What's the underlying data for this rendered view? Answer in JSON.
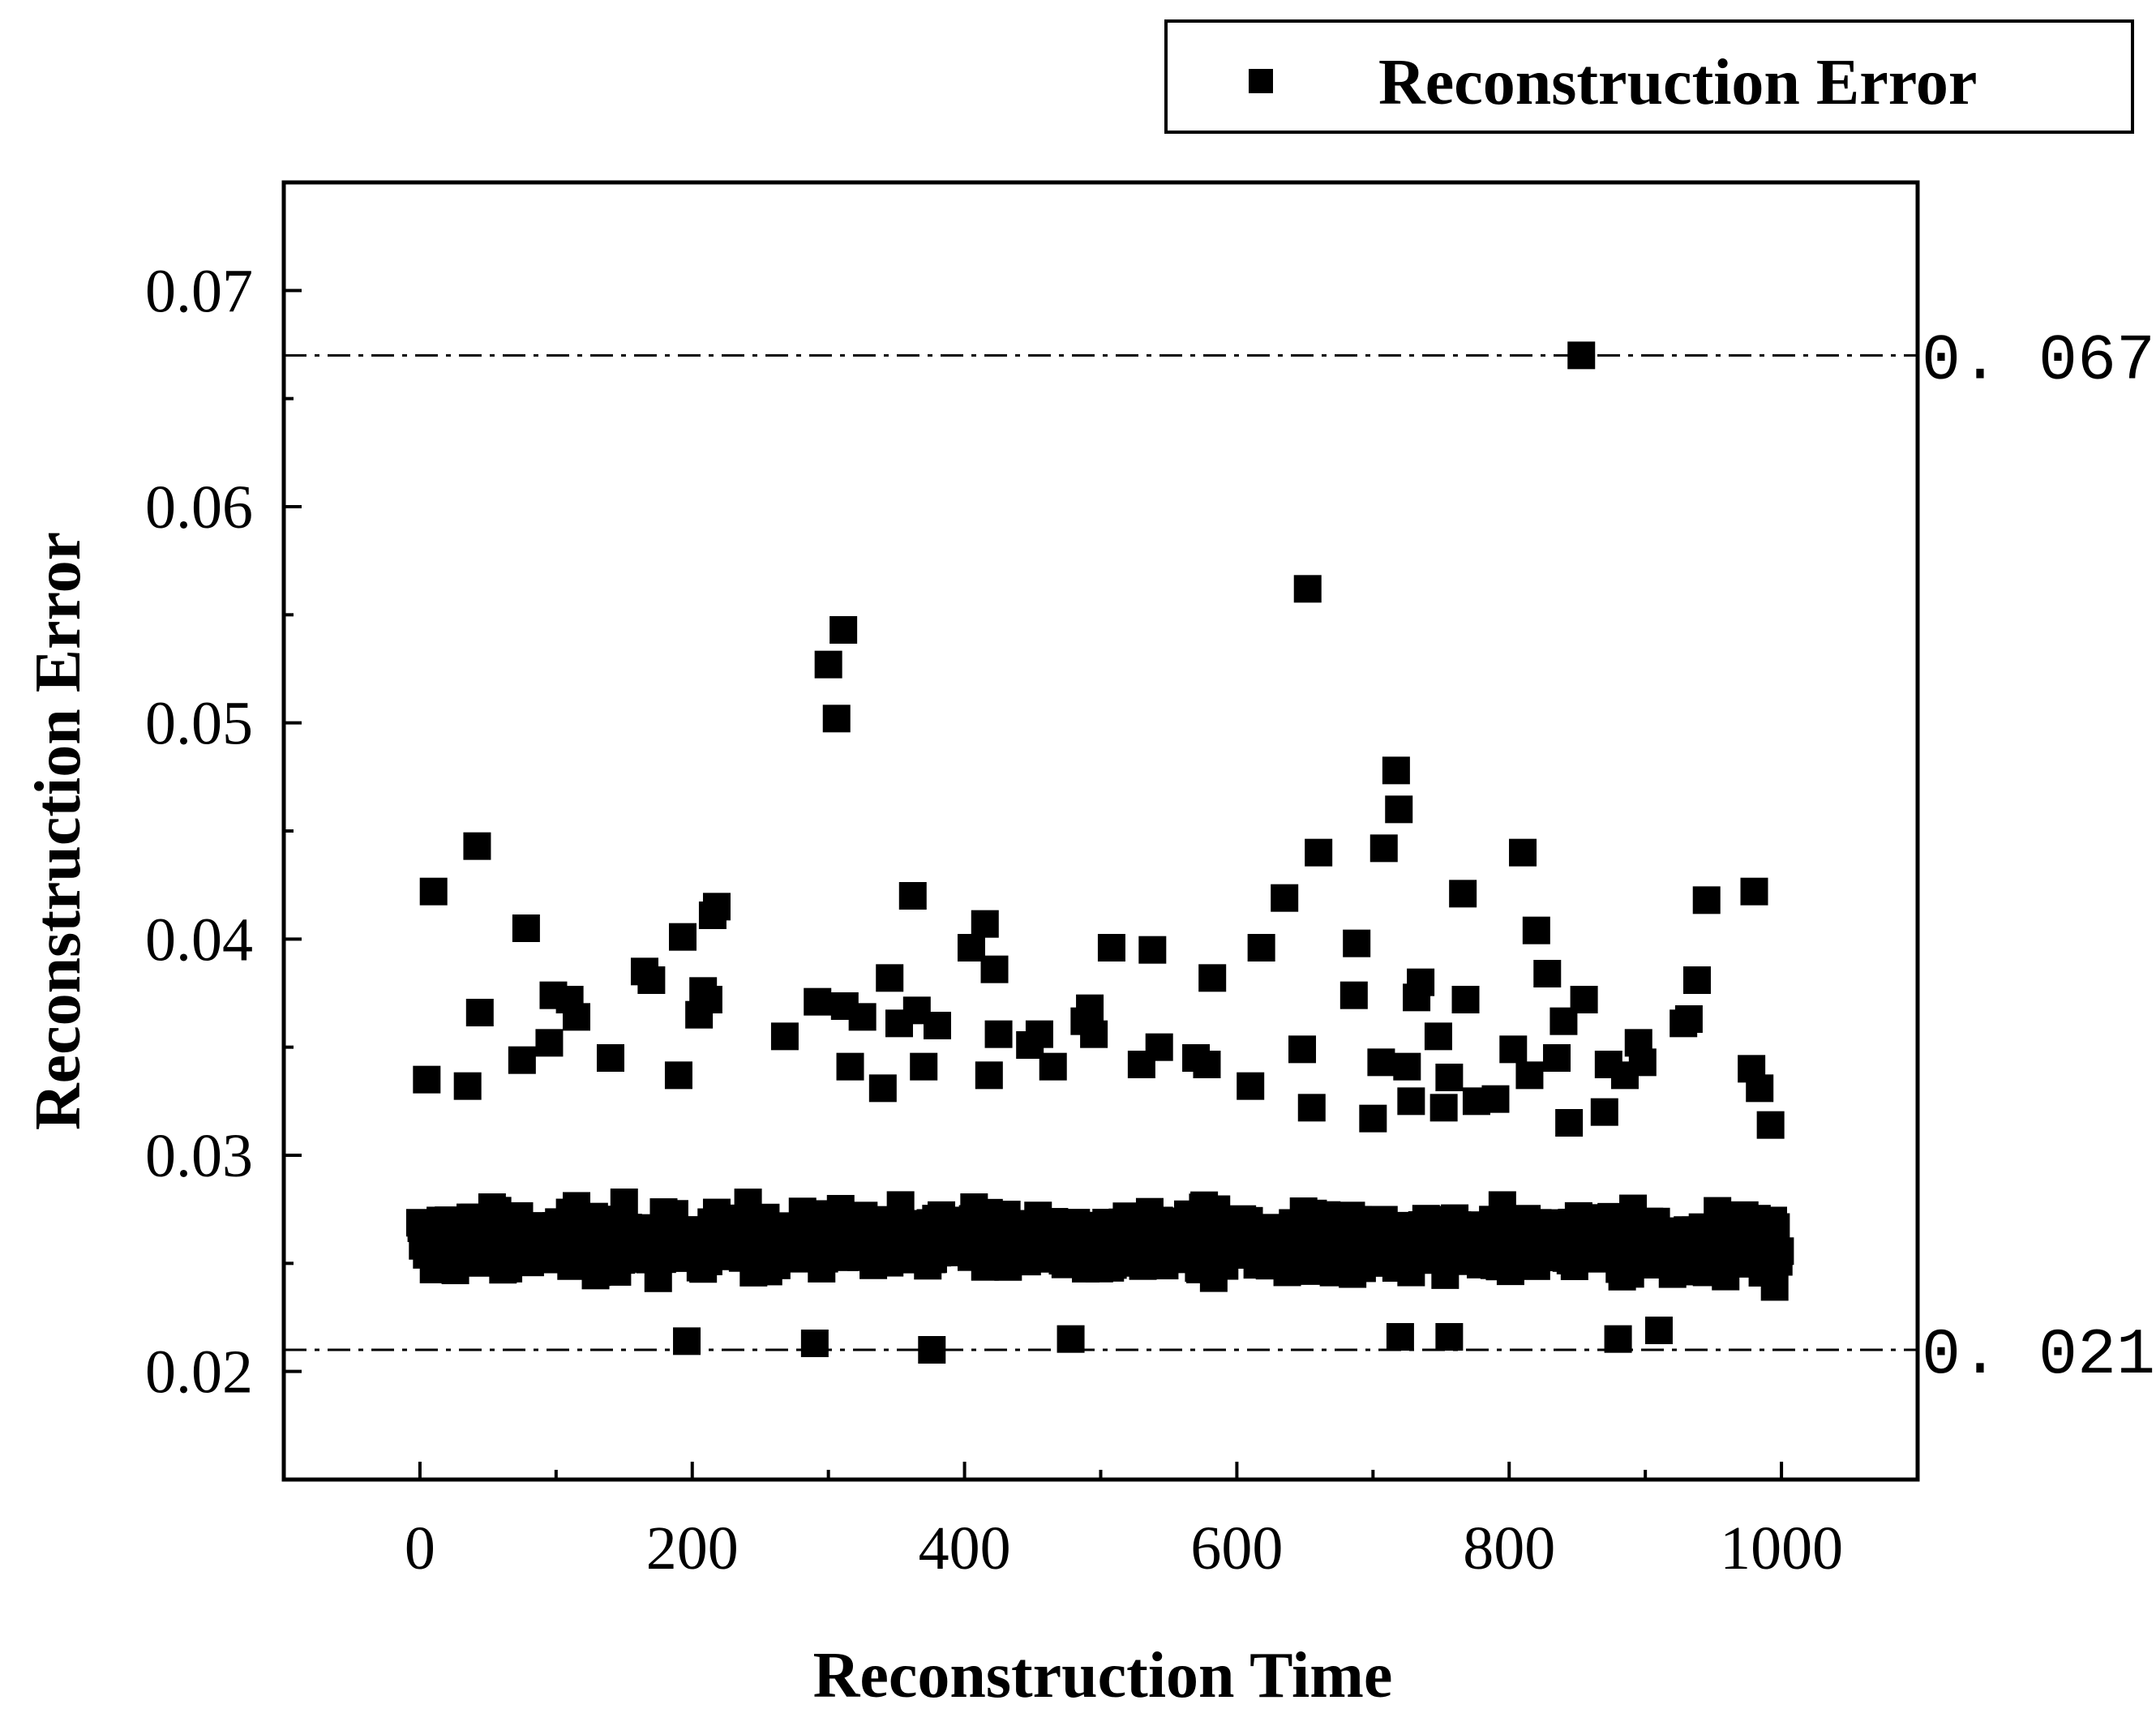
{
  "chart_data": {
    "type": "scatter",
    "title": "",
    "xlabel": "Reconstruction Time",
    "ylabel": "Reconstruction Error",
    "xlim": [
      -100,
      1100
    ],
    "ylim": [
      0.015,
      0.075
    ],
    "xticks": [
      0,
      200,
      400,
      600,
      800,
      1000
    ],
    "yticks": [
      0.02,
      0.03,
      0.04,
      0.05,
      0.06,
      0.07
    ],
    "xtick_labels": [
      "0",
      "200",
      "400",
      "600",
      "800",
      "1000"
    ],
    "ytick_labels": [
      "0.02",
      "0.03",
      "0.04",
      "0.05",
      "0.06",
      "0.07"
    ],
    "legend": {
      "label": "Reconstruction Error",
      "marker": "square",
      "placement": "top-right-outside"
    },
    "thresholds": [
      {
        "value": 0.067,
        "label": "0. 067",
        "style": "dash-dot"
      },
      {
        "value": 0.021,
        "label": "0. 021",
        "style": "dash-dot"
      }
    ],
    "series": [
      {
        "name": "Reconstruction Error",
        "marker": "square",
        "color": "#000000",
        "n_points": 1000,
        "baseline_mean": 0.026,
        "baseline_spread": [
          0.021,
          0.032
        ],
        "notable_points": [
          {
            "x": 5,
            "y": 0.0335
          },
          {
            "x": 10,
            "y": 0.0422
          },
          {
            "x": 35,
            "y": 0.0332
          },
          {
            "x": 42,
            "y": 0.0443
          },
          {
            "x": 44,
            "y": 0.0366
          },
          {
            "x": 75,
            "y": 0.0344
          },
          {
            "x": 78,
            "y": 0.0405
          },
          {
            "x": 95,
            "y": 0.0352
          },
          {
            "x": 98,
            "y": 0.0374
          },
          {
            "x": 110,
            "y": 0.0372
          },
          {
            "x": 115,
            "y": 0.0364
          },
          {
            "x": 140,
            "y": 0.0345
          },
          {
            "x": 165,
            "y": 0.0385
          },
          {
            "x": 170,
            "y": 0.0381
          },
          {
            "x": 190,
            "y": 0.0337
          },
          {
            "x": 193,
            "y": 0.0401
          },
          {
            "x": 205,
            "y": 0.0365
          },
          {
            "x": 208,
            "y": 0.0376
          },
          {
            "x": 212,
            "y": 0.0372
          },
          {
            "x": 215,
            "y": 0.0411
          },
          {
            "x": 218,
            "y": 0.0415
          },
          {
            "x": 268,
            "y": 0.0355
          },
          {
            "x": 292,
            "y": 0.0371
          },
          {
            "x": 300,
            "y": 0.0527
          },
          {
            "x": 306,
            "y": 0.0502
          },
          {
            "x": 311,
            "y": 0.0543
          },
          {
            "x": 312,
            "y": 0.0369
          },
          {
            "x": 316,
            "y": 0.0341
          },
          {
            "x": 325,
            "y": 0.0364
          },
          {
            "x": 340,
            "y": 0.0331
          },
          {
            "x": 345,
            "y": 0.0382
          },
          {
            "x": 352,
            "y": 0.0361
          },
          {
            "x": 362,
            "y": 0.042
          },
          {
            "x": 365,
            "y": 0.0367
          },
          {
            "x": 370,
            "y": 0.0341
          },
          {
            "x": 380,
            "y": 0.036
          },
          {
            "x": 405,
            "y": 0.0396
          },
          {
            "x": 415,
            "y": 0.0407
          },
          {
            "x": 418,
            "y": 0.0337
          },
          {
            "x": 422,
            "y": 0.0386
          },
          {
            "x": 425,
            "y": 0.0356
          },
          {
            "x": 448,
            "y": 0.0351
          },
          {
            "x": 455,
            "y": 0.0356
          },
          {
            "x": 465,
            "y": 0.0341
          },
          {
            "x": 488,
            "y": 0.0362
          },
          {
            "x": 492,
            "y": 0.0368
          },
          {
            "x": 495,
            "y": 0.0356
          },
          {
            "x": 508,
            "y": 0.0396
          },
          {
            "x": 530,
            "y": 0.0342
          },
          {
            "x": 538,
            "y": 0.0395
          },
          {
            "x": 543,
            "y": 0.035
          },
          {
            "x": 570,
            "y": 0.0345
          },
          {
            "x": 578,
            "y": 0.0342
          },
          {
            "x": 582,
            "y": 0.0382
          },
          {
            "x": 610,
            "y": 0.0332
          },
          {
            "x": 618,
            "y": 0.0396
          },
          {
            "x": 635,
            "y": 0.0419
          },
          {
            "x": 648,
            "y": 0.0349
          },
          {
            "x": 652,
            "y": 0.0562
          },
          {
            "x": 655,
            "y": 0.0322
          },
          {
            "x": 660,
            "y": 0.044
          },
          {
            "x": 686,
            "y": 0.0374
          },
          {
            "x": 688,
            "y": 0.0398
          },
          {
            "x": 700,
            "y": 0.0317
          },
          {
            "x": 706,
            "y": 0.0343
          },
          {
            "x": 708,
            "y": 0.0442
          },
          {
            "x": 717,
            "y": 0.0478
          },
          {
            "x": 719,
            "y": 0.046
          },
          {
            "x": 725,
            "y": 0.0341
          },
          {
            "x": 728,
            "y": 0.0325
          },
          {
            "x": 732,
            "y": 0.0373
          },
          {
            "x": 735,
            "y": 0.038
          },
          {
            "x": 748,
            "y": 0.0355
          },
          {
            "x": 752,
            "y": 0.0322
          },
          {
            "x": 756,
            "y": 0.0336
          },
          {
            "x": 766,
            "y": 0.0421
          },
          {
            "x": 768,
            "y": 0.0372
          },
          {
            "x": 776,
            "y": 0.0325
          },
          {
            "x": 790,
            "y": 0.0326
          },
          {
            "x": 803,
            "y": 0.0349
          },
          {
            "x": 810,
            "y": 0.044
          },
          {
            "x": 815,
            "y": 0.0337
          },
          {
            "x": 820,
            "y": 0.0404
          },
          {
            "x": 828,
            "y": 0.0384
          },
          {
            "x": 835,
            "y": 0.0345
          },
          {
            "x": 840,
            "y": 0.0362
          },
          {
            "x": 844,
            "y": 0.0315
          },
          {
            "x": 853,
            "y": 0.067
          },
          {
            "x": 855,
            "y": 0.0372
          },
          {
            "x": 870,
            "y": 0.032
          },
          {
            "x": 873,
            "y": 0.0342
          },
          {
            "x": 885,
            "y": 0.0337
          },
          {
            "x": 895,
            "y": 0.0352
          },
          {
            "x": 898,
            "y": 0.0343
          },
          {
            "x": 928,
            "y": 0.0361
          },
          {
            "x": 932,
            "y": 0.0363
          },
          {
            "x": 938,
            "y": 0.0381
          },
          {
            "x": 945,
            "y": 0.0418
          },
          {
            "x": 978,
            "y": 0.034
          },
          {
            "x": 980,
            "y": 0.0422
          },
          {
            "x": 984,
            "y": 0.0331
          },
          {
            "x": 992,
            "y": 0.0314
          },
          {
            "x": 376,
            "y": 0.021
          },
          {
            "x": 290,
            "y": 0.0213
          },
          {
            "x": 196,
            "y": 0.0214
          },
          {
            "x": 478,
            "y": 0.0215
          },
          {
            "x": 720,
            "y": 0.0216
          },
          {
            "x": 756,
            "y": 0.0216
          },
          {
            "x": 880,
            "y": 0.0215
          },
          {
            "x": 910,
            "y": 0.0219
          }
        ]
      }
    ]
  }
}
